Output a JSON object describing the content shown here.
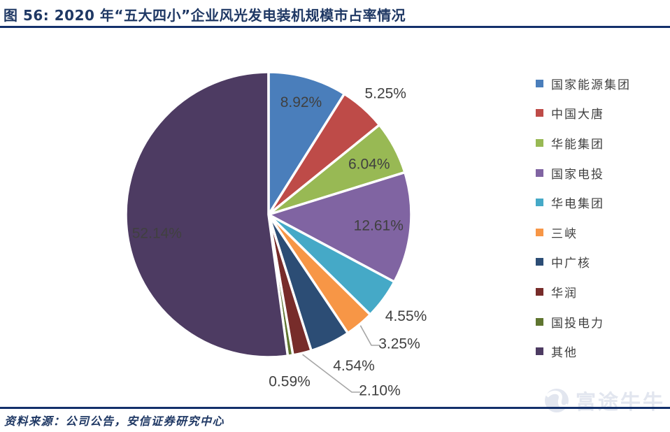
{
  "title": "图 56: 2020 年“五大四小”企业风光发电装机规模市占率情况",
  "source": "资料来源：公司公告，安信证券研究中心",
  "watermark": {
    "text": "富途牛牛"
  },
  "colors": {
    "accent_navy": "#1F3864",
    "rule_navy": "#13306B",
    "value_label_gray": "#404040",
    "legend_text_gray": "#3F3F3F",
    "leader_line_gray": "#A6A6A6",
    "watermark_gray": "#E2E6EF",
    "slice_border_white": "#FFFFFF"
  },
  "chart_data": {
    "type": "pie",
    "title": "2020 年“五大四小”企业风光发电装机规模市占率情况",
    "categories": [
      "国家能源集团",
      "中国大唐",
      "华能集团",
      "国家电投",
      "华电集团",
      "三峡",
      "中广核",
      "华润",
      "国投电力",
      "其他"
    ],
    "values": [
      8.92,
      5.25,
      6.04,
      12.61,
      4.55,
      3.25,
      4.54,
      2.1,
      0.59,
      52.14
    ],
    "labels": [
      "8.92%",
      "5.25%",
      "6.04%",
      "12.61%",
      "4.55%",
      "3.25%",
      "4.54%",
      "2.10%",
      "0.59%",
      "52.14%"
    ],
    "colors": [
      "#4A7EBB",
      "#BE4B48",
      "#98B954",
      "#8064A2",
      "#45A9C7",
      "#F79646",
      "#2C4D75",
      "#772C2A",
      "#5F7530",
      "#4D3B62"
    ],
    "unit": "%",
    "total": 100,
    "legend_position": "right",
    "start_angle_deg": 0,
    "direction": "clockwise"
  }
}
